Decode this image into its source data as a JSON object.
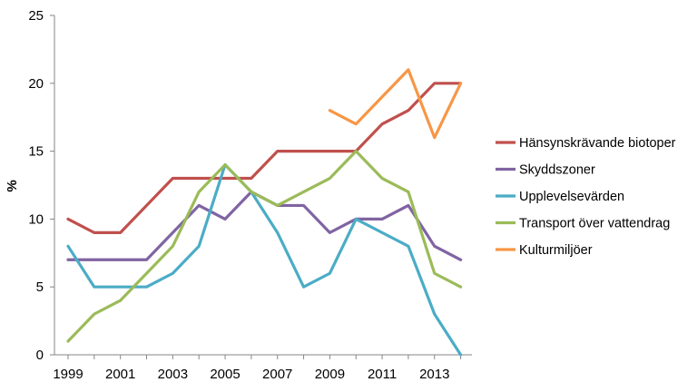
{
  "chart_data": {
    "type": "line",
    "ylabel": "%",
    "xlabel": "",
    "title": "",
    "ylim": [
      0,
      25
    ],
    "yticks": [
      0,
      5,
      10,
      15,
      20,
      25
    ],
    "xlim": [
      1999,
      2014
    ],
    "xticks": [
      1999,
      2001,
      2003,
      2005,
      2007,
      2009,
      2011,
      2013
    ],
    "grid": false,
    "legend_position": "right",
    "x": [
      1999,
      2000,
      2001,
      2002,
      2003,
      2004,
      2005,
      2006,
      2007,
      2008,
      2009,
      2010,
      2011,
      2012,
      2013,
      2014
    ],
    "series": [
      {
        "name": "Hänsynskrävande biotoper",
        "color": "#c0504d",
        "values": [
          10,
          9,
          9,
          11,
          13,
          13,
          13,
          13,
          15,
          15,
          15,
          15,
          17,
          18,
          20,
          20
        ]
      },
      {
        "name": "Skyddszoner",
        "color": "#8064a2",
        "values": [
          7,
          7,
          7,
          7,
          9,
          11,
          10,
          12,
          11,
          11,
          9,
          10,
          10,
          11,
          8,
          7
        ]
      },
      {
        "name": "Upplevelsevärden",
        "color": "#4bacc6",
        "values": [
          8,
          5,
          5,
          5,
          6,
          8,
          14,
          12,
          9,
          5,
          6,
          10,
          9,
          8,
          3,
          0
        ]
      },
      {
        "name": "Transport över vattendrag",
        "color": "#9bbb59",
        "values": [
          1,
          3,
          4,
          6,
          8,
          12,
          14,
          12,
          11,
          12,
          13,
          15,
          13,
          12,
          6,
          5
        ]
      },
      {
        "name": "Kulturmiljöer",
        "color": "#f79646",
        "values": [
          null,
          null,
          null,
          null,
          null,
          null,
          null,
          null,
          null,
          null,
          18,
          17,
          19,
          21,
          16,
          20
        ]
      }
    ]
  }
}
